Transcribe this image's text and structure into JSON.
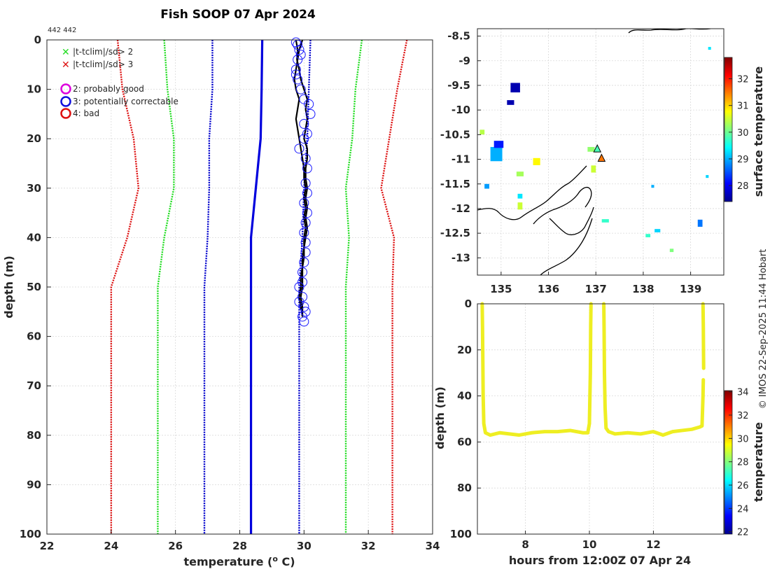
{
  "title": "Fish SOOP 07 Apr 2024",
  "corner_note": "442 442",
  "credit": "© IMOS 22-Sep-2025 11:44 Hobart",
  "legend": {
    "cross_items": [
      {
        "label": "|t-tclim|/sd> 2",
        "color": "#22dd22"
      },
      {
        "label": "|t-tclim|/sd> 3",
        "color": "#dd1111"
      }
    ],
    "circle_items": [
      {
        "label": "2: probably good",
        "color": "#dd00dd"
      },
      {
        "label": "3: potentially correctable",
        "color": "#1111dd"
      },
      {
        "label": "4: bad",
        "color": "#dd1111"
      }
    ]
  },
  "colors": {
    "profile": "#000000",
    "qc_circle": "#1a1aff",
    "clim_mean": "#0000dd",
    "sd2": "#22dd22",
    "sd3": "#dd1111",
    "sd1": "#0000cc",
    "track": "#eeee22",
    "coast": "#000000"
  },
  "chart_data": [
    {
      "type": "line",
      "name": "profile",
      "title": "Fish SOOP 07 Apr 2024",
      "xlabel": "temperature (",
      "xlabel_unit": "o",
      "xlabel_end": " C)",
      "ylabel": "depth (m)",
      "xlim": [
        22,
        34
      ],
      "ylim": [
        100,
        0
      ],
      "xticks": [
        22,
        24,
        26,
        28,
        30,
        32,
        34
      ],
      "yticks": [
        0,
        10,
        20,
        30,
        40,
        50,
        60,
        70,
        80,
        90,
        100
      ],
      "grid": true,
      "climatology": {
        "depth": [
          0,
          10,
          20,
          30,
          40,
          50,
          60,
          70,
          80,
          90,
          100
        ],
        "mean": [
          28.7,
          28.68,
          28.65,
          28.5,
          28.35,
          28.35,
          28.35,
          28.35,
          28.35,
          28.35,
          28.35
        ],
        "minus1sd": [
          27.15,
          27.15,
          27.05,
          27.05,
          27.0,
          26.9,
          26.9,
          26.9,
          26.9,
          26.9,
          26.9
        ],
        "plus1sd": [
          30.2,
          30.15,
          30.1,
          30.0,
          29.95,
          29.85,
          29.85,
          29.85,
          29.85,
          29.85,
          29.85
        ],
        "minus2sd": [
          25.65,
          25.75,
          25.95,
          25.95,
          25.65,
          25.45,
          25.45,
          25.45,
          25.45,
          25.45,
          25.45
        ],
        "plus2sd": [
          31.8,
          31.6,
          31.5,
          31.3,
          31.4,
          31.3,
          31.3,
          31.3,
          31.3,
          31.3,
          31.3
        ],
        "minus3sd": [
          24.2,
          24.35,
          24.7,
          24.85,
          24.5,
          24.0,
          24.0,
          24.0,
          24.0,
          24.0,
          24.0
        ],
        "plus3sd": [
          33.2,
          32.9,
          32.65,
          32.4,
          32.8,
          32.75,
          32.75,
          32.75,
          32.75,
          32.75,
          32.75
        ]
      },
      "profiles": [
        {
          "depth": [
            0,
            2,
            4,
            6,
            8,
            10,
            12,
            14,
            16,
            18,
            20,
            22,
            24,
            26,
            28,
            30,
            32,
            34,
            36,
            38,
            40,
            42,
            44,
            46,
            48,
            50,
            52,
            54,
            56
          ],
          "temp": [
            29.75,
            29.8,
            29.78,
            29.85,
            29.9,
            30.0,
            30.1,
            30.05,
            30.1,
            30.05,
            30.0,
            30.1,
            30.1,
            30.05,
            30.05,
            30.1,
            30.05,
            30.1,
            30.05,
            30.1,
            30.05,
            30.0,
            30.0,
            29.95,
            29.95,
            29.95,
            29.9,
            29.95,
            29.95
          ]
        },
        {
          "depth": [
            0,
            2,
            4,
            6,
            8,
            10,
            12,
            14,
            16,
            18,
            20,
            22,
            24,
            26,
            28,
            30,
            32,
            34,
            36,
            38,
            40,
            42,
            44,
            46,
            48,
            50,
            52,
            54,
            56
          ],
          "temp": [
            29.95,
            29.85,
            29.8,
            29.75,
            29.7,
            29.75,
            29.85,
            29.8,
            29.75,
            29.8,
            29.85,
            29.9,
            29.95,
            30.0,
            30.0,
            30.05,
            30.0,
            30.05,
            30.0,
            30.05,
            30.0,
            30.0,
            29.95,
            29.95,
            29.9,
            29.9,
            29.85,
            29.9,
            29.95
          ]
        }
      ],
      "qc_circles": {
        "depth": [
          0.5,
          1,
          2,
          3,
          4,
          6,
          7,
          8,
          10,
          12,
          13,
          15,
          17,
          19,
          20,
          22,
          24,
          26,
          29,
          31,
          33,
          35,
          37,
          39,
          41,
          43,
          45,
          47,
          49,
          50,
          52,
          53,
          54,
          55,
          56,
          57
        ],
        "temp": [
          29.75,
          29.8,
          29.85,
          29.9,
          29.8,
          29.75,
          29.75,
          29.8,
          29.9,
          30.0,
          30.15,
          30.2,
          30.0,
          30.1,
          30.0,
          29.85,
          30.05,
          30.1,
          30.05,
          30.1,
          30.0,
          30.1,
          30.05,
          30.0,
          30.05,
          30.05,
          30.0,
          29.95,
          29.95,
          29.85,
          29.95,
          29.85,
          30.0,
          30.05,
          29.95,
          30.0
        ]
      }
    },
    {
      "type": "heatmap",
      "name": "sst_map",
      "xlim": [
        134.5,
        139.7
      ],
      "ylim": [
        -13.35,
        -8.35
      ],
      "xticks": [
        135,
        136,
        137,
        138,
        139
      ],
      "yticks": [
        -8.5,
        -9,
        -9.5,
        -10,
        -10.5,
        -11,
        -11.5,
        -12,
        -12.5,
        -13
      ],
      "colorbar_label": "surface temperature",
      "colorbar_ticks": [
        28,
        29,
        30,
        31,
        32
      ],
      "colorbar_range": [
        27.4,
        32.8
      ],
      "cells": [
        {
          "lon": 134.9,
          "lat": -10.9,
          "t": 29.0,
          "w": 0.25,
          "h": 0.3
        },
        {
          "lon": 134.95,
          "lat": -10.7,
          "t": 28.2,
          "w": 0.2,
          "h": 0.15
        },
        {
          "lon": 134.6,
          "lat": -10.45,
          "t": 30.4,
          "w": 0.1,
          "h": 0.1
        },
        {
          "lon": 135.3,
          "lat": -9.55,
          "t": 27.6,
          "w": 0.2,
          "h": 0.2
        },
        {
          "lon": 135.2,
          "lat": -9.85,
          "t": 27.6,
          "w": 0.15,
          "h": 0.1
        },
        {
          "lon": 135.4,
          "lat": -11.3,
          "t": 30.3,
          "w": 0.15,
          "h": 0.1
        },
        {
          "lon": 135.75,
          "lat": -11.05,
          "t": 30.8,
          "w": 0.15,
          "h": 0.15
        },
        {
          "lon": 135.4,
          "lat": -11.75,
          "t": 29.3,
          "w": 0.1,
          "h": 0.1
        },
        {
          "lon": 135.4,
          "lat": -11.95,
          "t": 30.5,
          "w": 0.1,
          "h": 0.15
        },
        {
          "lon": 134.7,
          "lat": -11.55,
          "t": 28.9,
          "w": 0.1,
          "h": 0.1
        },
        {
          "lon": 136.9,
          "lat": -10.8,
          "t": 30.2,
          "w": 0.15,
          "h": 0.1
        },
        {
          "lon": 136.95,
          "lat": -11.2,
          "t": 30.5,
          "w": 0.1,
          "h": 0.15
        },
        {
          "lon": 137.2,
          "lat": -12.25,
          "t": 29.7,
          "w": 0.15,
          "h": 0.07
        },
        {
          "lon": 138.3,
          "lat": -12.45,
          "t": 29.2,
          "w": 0.12,
          "h": 0.07
        },
        {
          "lon": 138.1,
          "lat": -12.55,
          "t": 29.7,
          "w": 0.1,
          "h": 0.07
        },
        {
          "lon": 139.2,
          "lat": -12.3,
          "t": 28.7,
          "w": 0.1,
          "h": 0.15
        },
        {
          "lon": 138.6,
          "lat": -12.85,
          "t": 30.1,
          "w": 0.08,
          "h": 0.07
        },
        {
          "lon": 139.4,
          "lat": -8.75,
          "t": 29.3,
          "w": 0.06,
          "h": 0.06
        },
        {
          "lon": 138.2,
          "lat": -11.55,
          "t": 29.0,
          "w": 0.06,
          "h": 0.06
        },
        {
          "lon": 139.35,
          "lat": -11.35,
          "t": 29.2,
          "w": 0.06,
          "h": 0.06
        }
      ],
      "ship_positions": [
        {
          "lon": 137.03,
          "lat": -10.78,
          "t": 29.8
        },
        {
          "lon": 137.12,
          "lat": -10.97,
          "t": 31.5
        }
      ]
    },
    {
      "type": "scatter",
      "name": "depth_time",
      "xlabel": "hours from 12:00Z 07 Apr 24",
      "ylabel": "depth (m)",
      "xlim": [
        6.5,
        14.2
      ],
      "ylim": [
        100,
        0
      ],
      "xticks": [
        8,
        10,
        12
      ],
      "yticks": [
        0,
        20,
        40,
        60,
        80,
        100
      ],
      "colorbar_label": "temperature",
      "colorbar_ticks": [
        22,
        24,
        26,
        28,
        30,
        32,
        34
      ],
      "colorbar_range": [
        21.8,
        34.1
      ],
      "segments": [
        {
          "hours": [
            6.65,
            6.66,
            6.67,
            6.68,
            6.7,
            6.75,
            6.9,
            7.2,
            7.5,
            7.8,
            8.2,
            8.6,
            9.0,
            9.4,
            9.8,
            9.95,
            10.0,
            10.03,
            10.04,
            10.05
          ],
          "depth": [
            0,
            10,
            25,
            40,
            52,
            56,
            57,
            56,
            56.5,
            57,
            56,
            55.5,
            55.5,
            55,
            56,
            56,
            52,
            30,
            10,
            0
          ]
        },
        {
          "hours": [
            10.45,
            10.46,
            10.47,
            10.49,
            10.52,
            10.6,
            10.8,
            11.2,
            11.6,
            12.0,
            12.3,
            12.6,
            12.9,
            13.2,
            13.45,
            13.52,
            13.55,
            13.56
          ],
          "depth": [
            0,
            12,
            30,
            45,
            54,
            55.5,
            56.5,
            56,
            56.5,
            55.5,
            57,
            55.5,
            55,
            54.5,
            53.5,
            53,
            40,
            33
          ]
        },
        {
          "hours": [
            13.55,
            13.56,
            13.57
          ],
          "depth": [
            0,
            10,
            28
          ]
        }
      ],
      "temperature": 30.2
    }
  ]
}
